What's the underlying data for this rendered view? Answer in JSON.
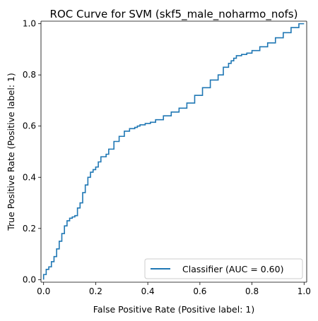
{
  "chart_data": {
    "type": "line",
    "title": "ROC Curve for SVM (skf5_male_noharmo_nofs)",
    "xlabel": "False Positive Rate (Positive label: 1)",
    "ylabel": "True Positive Rate (Positive label: 1)",
    "xlim": [
      -0.01,
      1.01
    ],
    "ylim": [
      -0.01,
      1.01
    ],
    "xticks": [
      0.0,
      0.2,
      0.4,
      0.6,
      0.8,
      1.0
    ],
    "xtick_labels": [
      "0.0",
      "0.2",
      "0.4",
      "0.6",
      "0.8",
      "1.0"
    ],
    "yticks": [
      0.0,
      0.2,
      0.4,
      0.6,
      0.8,
      1.0
    ],
    "ytick_labels": [
      "0.0",
      "0.2",
      "0.4",
      "0.6",
      "0.8",
      "1.0"
    ],
    "grid": false,
    "legend": {
      "position": "lower-right",
      "entries": [
        "Classifier (AUC = 0.60)"
      ]
    },
    "series": [
      {
        "name": "Classifier (AUC = 0.60)",
        "color": "#1f77b4",
        "x": [
          0.0,
          0.0,
          0.01,
          0.02,
          0.03,
          0.04,
          0.05,
          0.06,
          0.07,
          0.08,
          0.09,
          0.1,
          0.11,
          0.12,
          0.13,
          0.14,
          0.15,
          0.16,
          0.17,
          0.18,
          0.19,
          0.2,
          0.21,
          0.22,
          0.24,
          0.25,
          0.27,
          0.29,
          0.31,
          0.33,
          0.35,
          0.36,
          0.37,
          0.39,
          0.41,
          0.43,
          0.46,
          0.49,
          0.52,
          0.55,
          0.58,
          0.61,
          0.64,
          0.67,
          0.69,
          0.71,
          0.72,
          0.73,
          0.74,
          0.76,
          0.78,
          0.8,
          0.83,
          0.86,
          0.89,
          0.92,
          0.95,
          0.98,
          1.0
        ],
        "y": [
          0.0,
          0.01,
          0.02,
          0.04,
          0.05,
          0.07,
          0.09,
          0.12,
          0.15,
          0.18,
          0.21,
          0.23,
          0.24,
          0.245,
          0.25,
          0.28,
          0.3,
          0.34,
          0.37,
          0.4,
          0.42,
          0.43,
          0.44,
          0.46,
          0.48,
          0.49,
          0.51,
          0.54,
          0.56,
          0.58,
          0.59,
          0.595,
          0.6,
          0.605,
          0.61,
          0.615,
          0.625,
          0.64,
          0.655,
          0.67,
          0.69,
          0.72,
          0.75,
          0.78,
          0.8,
          0.83,
          0.845,
          0.855,
          0.865,
          0.875,
          0.88,
          0.885,
          0.895,
          0.91,
          0.925,
          0.945,
          0.965,
          0.985,
          1.0
        ]
      }
    ]
  }
}
